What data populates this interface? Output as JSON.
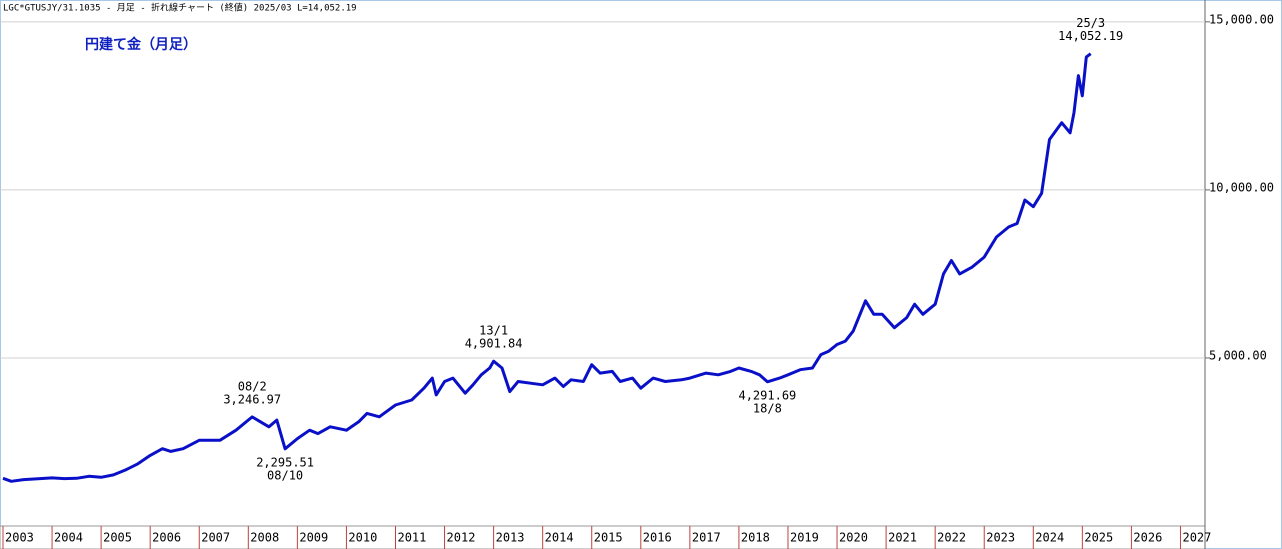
{
  "header": "LGC*GTUSJY/31.1035 - 月足 - 折れ線チャート (終値)  2025/03 L=14,052.19",
  "chart_data": {
    "type": "line",
    "title": "円建て金（月足）",
    "x": [
      2003.0,
      2003.17,
      2003.42,
      2003.67,
      2004.0,
      2004.25,
      2004.5,
      2004.75,
      2005.0,
      2005.25,
      2005.5,
      2005.75,
      2006.0,
      2006.25,
      2006.42,
      2006.67,
      2007.0,
      2007.42,
      2007.75,
      2008.08,
      2008.42,
      2008.58,
      2008.75,
      2009.0,
      2009.25,
      2009.42,
      2009.67,
      2010.0,
      2010.25,
      2010.42,
      2010.67,
      2011.0,
      2011.33,
      2011.58,
      2011.75,
      2011.83,
      2012.0,
      2012.17,
      2012.42,
      2012.58,
      2012.75,
      2012.92,
      2013.0,
      2013.17,
      2013.33,
      2013.5,
      2013.75,
      2014.0,
      2014.25,
      2014.42,
      2014.58,
      2014.83,
      2015.0,
      2015.17,
      2015.42,
      2015.58,
      2015.83,
      2016.0,
      2016.25,
      2016.5,
      2016.83,
      2017.0,
      2017.33,
      2017.58,
      2017.83,
      2018.0,
      2018.25,
      2018.42,
      2018.58,
      2018.83,
      2019.0,
      2019.25,
      2019.5,
      2019.67,
      2019.83,
      2020.0,
      2020.17,
      2020.33,
      2020.58,
      2020.75,
      2020.92,
      2021.17,
      2021.42,
      2021.58,
      2021.75,
      2022.0,
      2022.17,
      2022.33,
      2022.5,
      2022.75,
      2023.0,
      2023.25,
      2023.5,
      2023.67,
      2023.83,
      2024.0,
      2024.17,
      2024.33,
      2024.58,
      2024.75,
      2024.83,
      2024.92,
      2025.0,
      2025.08,
      2025.17
    ],
    "series": [
      {
        "color": "#0a10c8",
        "values": [
          1420,
          1330,
          1380,
          1400,
          1430,
          1410,
          1420,
          1480,
          1450,
          1520,
          1670,
          1850,
          2100,
          2300,
          2220,
          2300,
          2550,
          2550,
          2850,
          3246.97,
          2950,
          3150,
          2295.51,
          2600,
          2850,
          2750,
          2950,
          2850,
          3100,
          3350,
          3250,
          3600,
          3750,
          4100,
          4400,
          3900,
          4300,
          4400,
          3950,
          4200,
          4500,
          4700,
          4901.84,
          4700,
          4000,
          4300,
          4250,
          4200,
          4400,
          4150,
          4350,
          4300,
          4800,
          4550,
          4600,
          4300,
          4400,
          4100,
          4400,
          4300,
          4350,
          4400,
          4550,
          4500,
          4600,
          4700,
          4600,
          4500,
          4291.69,
          4400,
          4500,
          4650,
          4700,
          5100,
          5200,
          5400,
          5500,
          5800,
          6700,
          6300,
          6300,
          5900,
          6200,
          6600,
          6300,
          6600,
          7500,
          7900,
          7500,
          7700,
          8000,
          8600,
          8900,
          9000,
          9700,
          9500,
          9900,
          11500,
          12000,
          11700,
          12300,
          13400,
          12800,
          13950,
          14052.19
        ]
      }
    ],
    "xlim": [
      2003,
      2027.5
    ],
    "xticks": [
      2003,
      2004,
      2005,
      2006,
      2007,
      2008,
      2009,
      2010,
      2011,
      2012,
      2013,
      2014,
      2015,
      2016,
      2017,
      2018,
      2019,
      2020,
      2021,
      2022,
      2023,
      2024,
      2025,
      2026,
      2027
    ],
    "ylim": [
      0,
      15650
    ],
    "yticks": [
      {
        "value": 5000,
        "label": "5,000.00"
      },
      {
        "value": 10000,
        "label": "10,000.00"
      },
      {
        "value": 15000,
        "label": "15,000.00"
      }
    ],
    "grid": true,
    "annotations": [
      {
        "date": "08/2",
        "value_label": "3,246.97",
        "x": 2008.08,
        "y": 3246.97
      },
      {
        "date": "08/10",
        "value_label": "2,295.51",
        "x": 2008.75,
        "y": 2295.51
      },
      {
        "date": "13/1",
        "value_label": "4,901.84",
        "x": 2013.0,
        "y": 4901.84
      },
      {
        "date": "18/8",
        "value_label": "4,291.69",
        "x": 2018.58,
        "y": 4291.69
      },
      {
        "date": "25/3",
        "value_label": "14,052.19",
        "x": 2025.17,
        "y": 14052.19
      }
    ]
  }
}
